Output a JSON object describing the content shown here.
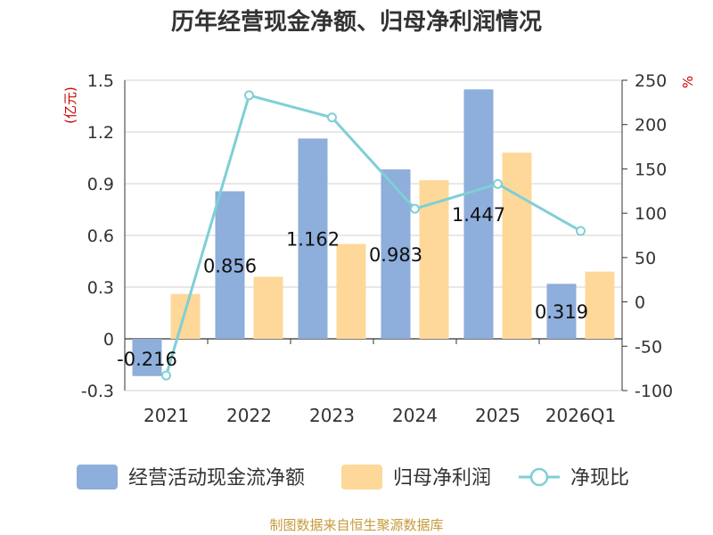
{
  "chart_data": {
    "type": "bar+line",
    "title": "历年经营现金净额、归母净利润情况",
    "source": "制图数据来自恒生聚源数据库",
    "categories": [
      "2021",
      "2022",
      "2023",
      "2024",
      "2025",
      "2026Q1"
    ],
    "left_axis": {
      "unit": "(亿元)",
      "ylim": [
        -0.3,
        1.5
      ],
      "ticks": [
        "-0.3",
        "0",
        "0.3",
        "0.6",
        "0.9",
        "1.2",
        "1.5"
      ]
    },
    "right_axis": {
      "unit": "%",
      "ylim": [
        -100,
        250
      ],
      "ticks": [
        "-100",
        "-50",
        "0",
        "50",
        "100",
        "150",
        "200",
        "250"
      ]
    },
    "series": [
      {
        "name": "经营活动现金流净额",
        "kind": "bar",
        "axis": "left",
        "color": "#8eaedb",
        "values": [
          -0.216,
          0.856,
          1.162,
          0.983,
          1.447,
          0.319
        ],
        "labels": [
          "-0.216",
          "0.856",
          "1.162",
          "0.983",
          "1.447",
          "0.319"
        ]
      },
      {
        "name": "归母净利润",
        "kind": "bar",
        "axis": "left",
        "color": "#fdd899",
        "values": [
          0.26,
          0.36,
          0.55,
          0.92,
          1.08,
          0.39
        ]
      },
      {
        "name": "净现比",
        "kind": "line",
        "axis": "right",
        "color": "#7fcfd6",
        "values": [
          -83,
          233,
          208,
          105,
          133,
          80
        ]
      }
    ]
  }
}
